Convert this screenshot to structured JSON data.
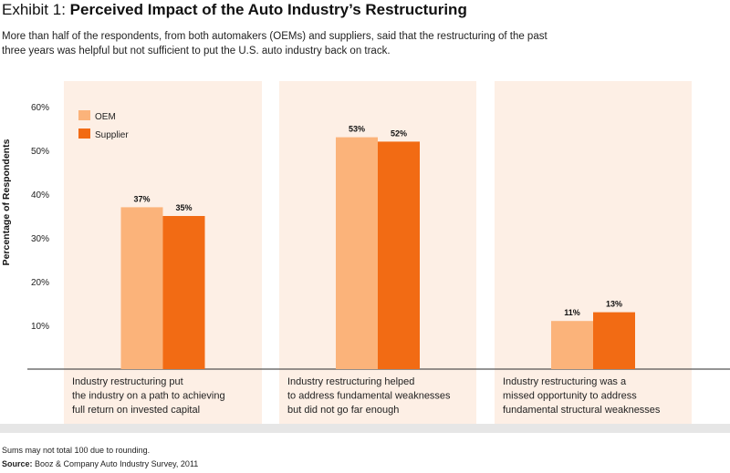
{
  "header": {
    "exhibit": "Exhibit 1:",
    "title": "Perceived Impact of the Auto Industry’s Restructuring",
    "subtitle": "More than half of the respondents, from both automakers (OEMs) and suppliers, said that the restructuring of the past three years was helpful but not sufficient to put the U.S. auto industry back on track."
  },
  "chart_data": {
    "type": "bar",
    "ylabel": "Percentage of Respondents",
    "ylim": [
      0,
      60
    ],
    "yticks": [
      "10%",
      "20%",
      "30%",
      "40%",
      "50%",
      "60%"
    ],
    "categories": [
      [
        "Industry restructuring put",
        "the industry on a path to achieving",
        "full return on invested capital"
      ],
      [
        "Industry restructuring helped",
        "to address fundamental weaknesses",
        "but did not go far enough"
      ],
      [
        "Industry restructuring was a",
        "missed opportunity to address",
        "fundamental structural weaknesses"
      ]
    ],
    "series": [
      {
        "name": "OEM",
        "color": "#fbb37a",
        "values": [
          37,
          53,
          11
        ],
        "labels": [
          "37%",
          "53%",
          "11%"
        ]
      },
      {
        "name": "Supplier",
        "color": "#f26b14",
        "values": [
          35,
          52,
          13
        ],
        "labels": [
          "35%",
          "52%",
          "13%"
        ]
      }
    ],
    "legend": "top-left",
    "panel_color": "#fdefe5",
    "grid": false
  },
  "footer": {
    "note": "Sums may not total 100 due to rounding.",
    "source_label": "Source:",
    "source_text": " Booz & Company Auto Industry Survey, 2011"
  }
}
